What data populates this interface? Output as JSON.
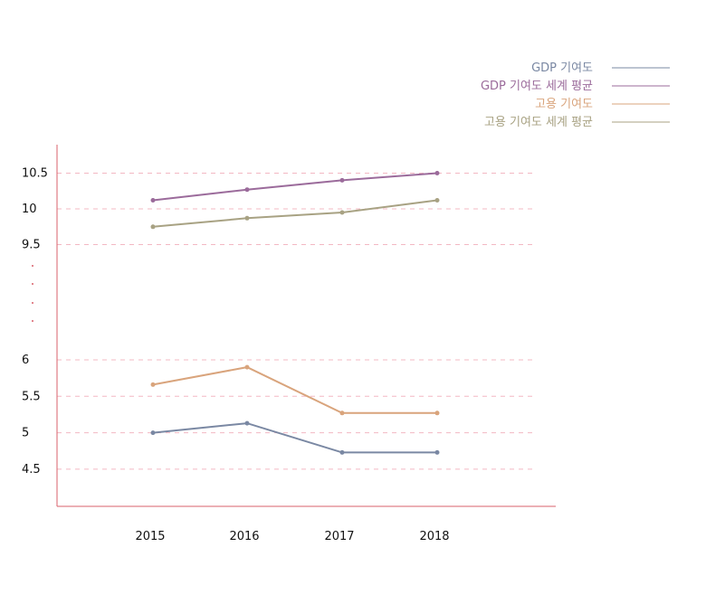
{
  "chart_data": {
    "type": "line",
    "categories": [
      "2015",
      "2016",
      "2017",
      "2018"
    ],
    "y_ticks": [
      "10.5",
      "10",
      "9.5",
      "6",
      "5.5",
      "5",
      "4.5"
    ],
    "y_axis_break": true,
    "grid": "horizontal dashed",
    "legend_placement": "top-right",
    "series": [
      {
        "name": "GDP 기여도",
        "color": "#7a88a3",
        "values": [
          5.0,
          5.13,
          4.73,
          4.73
        ]
      },
      {
        "name": "GDP 기여도 세계 평균",
        "color": "#9b6b9b",
        "values": [
          10.12,
          10.27,
          10.4,
          10.5
        ]
      },
      {
        "name": "고용 기여도",
        "color": "#d9a47c",
        "values": [
          5.66,
          5.9,
          5.27,
          5.27
        ]
      },
      {
        "name": "고용 기여도 세계 평균",
        "color": "#a8a283",
        "values": [
          9.75,
          9.87,
          9.95,
          10.12
        ]
      }
    ],
    "colors": {
      "axis": "#d9606b",
      "grid": "#f3b8c3"
    }
  }
}
